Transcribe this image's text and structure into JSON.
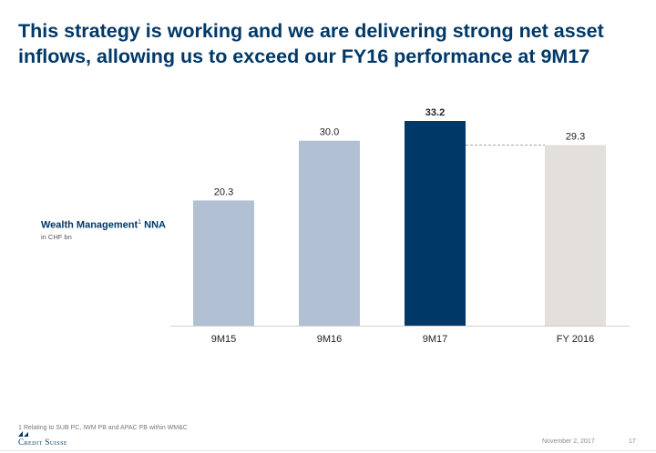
{
  "title": "This strategy is working and we are delivering strong net asset inflows, allowing us to exceed our FY16 performance at 9M17",
  "legend": {
    "label": "Wealth Management",
    "superscript": "1",
    "suffix": " NNA",
    "unit": "in CHF bn"
  },
  "chart_data": {
    "type": "bar",
    "categories": [
      "9M15",
      "9M16",
      "9M17",
      "FY 2016"
    ],
    "values": [
      20.3,
      30.0,
      33.2,
      29.3
    ],
    "value_labels": [
      "20.3",
      "30.0",
      "33.2",
      "29.3"
    ],
    "colors": [
      "#b1c1d3",
      "#b1c1d3",
      "#003868",
      "#e3e0dc"
    ],
    "highlight_index": 2,
    "reference_line": {
      "from_index": 2,
      "to_index": 3,
      "value": 29.3,
      "style": "dashed"
    },
    "title": "",
    "xlabel": "",
    "ylabel": "",
    "ylim": [
      0,
      33.2
    ]
  },
  "footer": {
    "footnote": "1 Relating to SUB PC, IWM PB and APAC PB within WM&C",
    "brand": "Credit Suisse",
    "date": "November 2, 2017",
    "page": "17"
  }
}
